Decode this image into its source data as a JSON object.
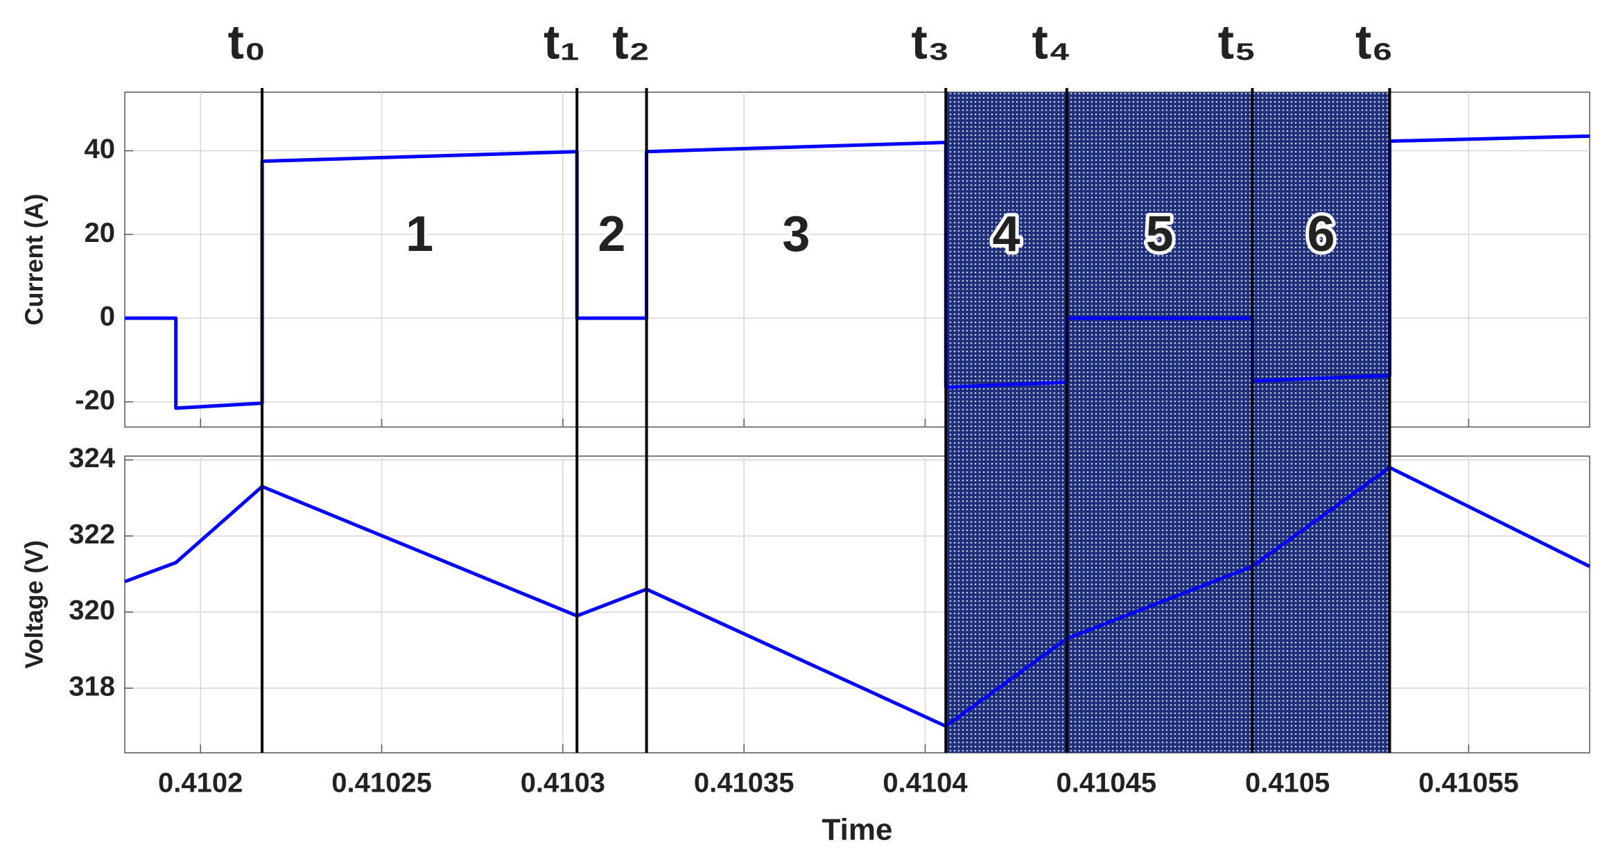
{
  "chart_data": [
    {
      "type": "line",
      "ylabel": "Current (A)",
      "x": [
        0.4101791,
        0.4101932,
        0.4101932,
        0.410217,
        0.410217,
        0.4103039,
        0.4103039,
        0.4103231,
        0.4103231,
        0.4104057,
        0.4104057,
        0.4104391,
        0.4104391,
        0.4104903,
        0.4104903,
        0.4105282,
        0.4105282,
        0.4105834
      ],
      "series": [
        {
          "color": "#0000ff",
          "values": [
            0,
            0,
            -21.5,
            -20.3,
            37.5,
            39.8,
            0,
            0,
            39.8,
            42,
            -16.5,
            -15.3,
            0,
            0,
            -15,
            -13.7,
            42.3,
            43.5
          ]
        }
      ],
      "xlim": [
        0.4101791,
        0.4105834
      ],
      "xticks": [
        0.4102,
        0.41025,
        0.4103,
        0.41035,
        0.4104,
        0.41045,
        0.4105,
        0.41055
      ],
      "xtick_labels": false,
      "ylim": [
        -26,
        54
      ],
      "yticks": [
        -20,
        0,
        20,
        40
      ],
      "grid": true,
      "markers": [
        {
          "label": "t₀",
          "x": 0.410217
        },
        {
          "label": "t₁",
          "x": 0.4103039
        },
        {
          "label": "t₂",
          "x": 0.4103231
        },
        {
          "label": "t₃",
          "x": 0.4104057
        },
        {
          "label": "t₄",
          "x": 0.4104391
        },
        {
          "label": "t₅",
          "x": 0.4104903
        },
        {
          "label": "t₆",
          "x": 0.4105282
        }
      ],
      "regions": [
        {
          "label": "1",
          "shaded": false
        },
        {
          "label": "2",
          "shaded": false
        },
        {
          "label": "3",
          "shaded": false
        },
        {
          "label": "4",
          "shaded": true
        },
        {
          "label": "5",
          "shaded": true
        },
        {
          "label": "6",
          "shaded": true
        }
      ]
    },
    {
      "type": "line",
      "ylabel": "Voltage (V)",
      "xlabel": "Time",
      "x": [
        0.4101791,
        0.4101932,
        0.410217,
        0.4103039,
        0.4103231,
        0.4104057,
        0.4104391,
        0.4104903,
        0.4105282,
        0.4105834
      ],
      "series": [
        {
          "color": "#0000ff",
          "values": [
            320.8,
            321.3,
            323.3,
            319.9,
            320.6,
            317,
            319.3,
            321.2,
            323.8,
            321.2
          ]
        }
      ],
      "xlim": [
        0.4101791,
        0.4105834
      ],
      "xticks": [
        0.4102,
        0.41025,
        0.4103,
        0.41035,
        0.4104,
        0.41045,
        0.4105,
        0.41055
      ],
      "xtick_labels": true,
      "ylim": [
        316.3,
        324.1
      ],
      "yticks": [
        318,
        320,
        322,
        324
      ],
      "grid": true
    }
  ]
}
